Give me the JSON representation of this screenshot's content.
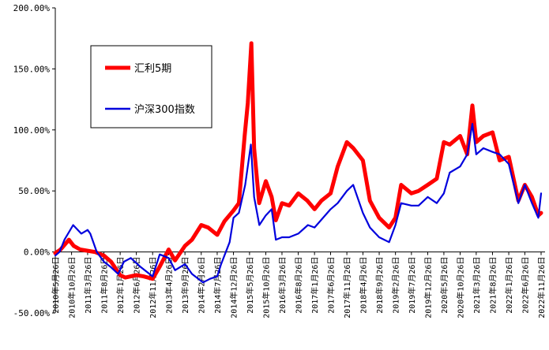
{
  "chart_data": {
    "type": "line",
    "title": "",
    "xlabel": "",
    "ylabel": "",
    "ylim": [
      -0.5,
      2.0
    ],
    "yticks": [
      2.0,
      1.5,
      1.0,
      0.5,
      0.0,
      -0.5
    ],
    "ytick_labels": [
      "200.00%",
      "150.00%",
      "100.00%",
      "50.00%",
      "0.00%",
      "-50.00%"
    ],
    "x_range": [
      "2010-05-26",
      "2022-11-26"
    ],
    "x_tick_dates": [
      "2010-05-26",
      "2010-10-26",
      "2011-03-26",
      "2011-08-26",
      "2012-01-26",
      "2012-06-26",
      "2012-11-26",
      "2013-04-26",
      "2013-09-26",
      "2014-02-26",
      "2014-07-26",
      "2014-12-26",
      "2015-05-26",
      "2015-10-26",
      "2016-03-26",
      "2016-08-26",
      "2017-01-26",
      "2017-06-26",
      "2017-11-26",
      "2018-04-26",
      "2018-09-26",
      "2019-02-26",
      "2019-07-26",
      "2019-12-26",
      "2020-05-26",
      "2020-10-26",
      "2021-03-26",
      "2021-08-26",
      "2022-01-26",
      "2022-06-26",
      "2022-11-26"
    ],
    "x_tick_labels": [
      "2010年5月26日",
      "2010年10月26日",
      "2011年3月26日",
      "2011年8月26日",
      "2012年1月26日",
      "2012年6月26日",
      "2012年11月26日",
      "2013年4月26日",
      "2013年9月26日",
      "2014年2月26日",
      "2014年7月26日",
      "2014年12月26日",
      "2015年5月26日",
      "2015年10月26日",
      "2016年3月26日",
      "2016年8月26日",
      "2017年1月26日",
      "2017年6月26日",
      "2017年11月26日",
      "2018年4月26日",
      "2018年9月26日",
      "2019年2月26日",
      "2019年7月26日",
      "2019年12月26日",
      "2020年5月26日",
      "2020年10月26日",
      "2021年3月26日",
      "2021年8月26日",
      "2022年1月26日",
      "2022年6月26日",
      "2022年11月26日"
    ],
    "legend_position": "upper-left",
    "grid": false,
    "series": [
      {
        "name": "汇利5期",
        "color": "#ff0000",
        "x": [
          "2010-05-26",
          "2010-07-15",
          "2010-10-01",
          "2010-11-15",
          "2011-01-15",
          "2011-03-26",
          "2011-06-01",
          "2011-08-26",
          "2011-11-01",
          "2012-01-26",
          "2012-03-15",
          "2012-06-26",
          "2012-09-01",
          "2012-11-26",
          "2013-02-01",
          "2013-04-26",
          "2013-06-25",
          "2013-09-26",
          "2013-12-01",
          "2014-02-26",
          "2014-05-01",
          "2014-07-26",
          "2014-10-01",
          "2014-12-26",
          "2015-02-15",
          "2015-04-10",
          "2015-05-10",
          "2015-06-12",
          "2015-07-08",
          "2015-08-25",
          "2015-10-26",
          "2015-12-20",
          "2016-01-28",
          "2016-03-26",
          "2016-06-01",
          "2016-08-26",
          "2016-11-20",
          "2017-01-26",
          "2017-04-01",
          "2017-06-26",
          "2017-09-01",
          "2017-11-26",
          "2018-01-26",
          "2018-04-26",
          "2018-07-01",
          "2018-09-26",
          "2018-12-28",
          "2019-02-26",
          "2019-04-20",
          "2019-07-26",
          "2019-10-01",
          "2019-12-26",
          "2020-03-20",
          "2020-05-26",
          "2020-07-20",
          "2020-10-26",
          "2021-01-01",
          "2021-02-18",
          "2021-03-26",
          "2021-06-01",
          "2021-08-26",
          "2021-11-01",
          "2022-01-26",
          "2022-04-26",
          "2022-06-26",
          "2022-09-01",
          "2022-10-31",
          "2022-11-26"
        ],
        "y": [
          -0.01,
          0.02,
          0.1,
          0.05,
          0.02,
          0.01,
          0.0,
          -0.03,
          -0.08,
          -0.19,
          -0.21,
          -0.19,
          -0.2,
          -0.22,
          -0.12,
          0.02,
          -0.07,
          0.05,
          0.1,
          0.22,
          0.2,
          0.14,
          0.25,
          0.34,
          0.4,
          0.95,
          1.22,
          1.71,
          0.85,
          0.4,
          0.58,
          0.45,
          0.26,
          0.4,
          0.38,
          0.48,
          0.42,
          0.35,
          0.42,
          0.48,
          0.7,
          0.9,
          0.85,
          0.75,
          0.42,
          0.28,
          0.2,
          0.28,
          0.55,
          0.48,
          0.5,
          0.55,
          0.6,
          0.9,
          0.88,
          0.95,
          0.8,
          1.2,
          0.9,
          0.95,
          0.98,
          0.75,
          0.78,
          0.42,
          0.55,
          0.45,
          0.3,
          0.32
        ]
      },
      {
        "name": "沪深300指数",
        "color": "#0000dd",
        "x": [
          "2010-05-26",
          "2010-07-05",
          "2010-08-20",
          "2010-11-10",
          "2011-01-25",
          "2011-03-26",
          "2011-04-20",
          "2011-06-20",
          "2011-08-26",
          "2011-10-25",
          "2012-01-06",
          "2012-03-01",
          "2012-05-05",
          "2012-08-01",
          "2012-11-26",
          "2013-02-01",
          "2013-04-26",
          "2013-06-25",
          "2013-09-26",
          "2013-12-01",
          "2014-03-15",
          "2014-05-20",
          "2014-07-26",
          "2014-09-01",
          "2014-11-20",
          "2014-12-26",
          "2015-02-15",
          "2015-04-15",
          "2015-06-08",
          "2015-07-08",
          "2015-08-26",
          "2015-10-26",
          "2015-12-20",
          "2016-01-28",
          "2016-03-26",
          "2016-06-01",
          "2016-08-26",
          "2016-11-25",
          "2017-01-26",
          "2017-06-26",
          "2017-09-01",
          "2017-11-26",
          "2018-01-24",
          "2018-04-26",
          "2018-07-01",
          "2018-09-26",
          "2018-12-28",
          "2019-02-26",
          "2019-04-20",
          "2019-07-26",
          "2019-10-01",
          "2019-12-26",
          "2020-03-20",
          "2020-05-26",
          "2020-07-20",
          "2020-10-26",
          "2021-01-01",
          "2021-02-18",
          "2021-03-26",
          "2021-06-01",
          "2021-08-26",
          "2021-11-01",
          "2022-01-26",
          "2022-04-26",
          "2022-06-26",
          "2022-09-01",
          "2022-10-31",
          "2022-11-26"
        ],
        "y": [
          -0.03,
          0.0,
          0.1,
          0.22,
          0.15,
          0.18,
          0.15,
          0.0,
          -0.08,
          -0.12,
          -0.18,
          -0.08,
          -0.05,
          -0.12,
          -0.2,
          -0.02,
          -0.05,
          -0.15,
          -0.1,
          -0.18,
          -0.25,
          -0.22,
          -0.2,
          -0.1,
          0.08,
          0.28,
          0.32,
          0.55,
          0.88,
          0.45,
          0.22,
          0.3,
          0.35,
          0.1,
          0.12,
          0.12,
          0.15,
          0.22,
          0.2,
          0.35,
          0.4,
          0.5,
          0.55,
          0.32,
          0.2,
          0.12,
          0.08,
          0.22,
          0.4,
          0.38,
          0.38,
          0.45,
          0.4,
          0.48,
          0.65,
          0.7,
          0.8,
          1.05,
          0.8,
          0.85,
          0.82,
          0.8,
          0.72,
          0.4,
          0.55,
          0.4,
          0.28,
          0.48
        ]
      }
    ]
  }
}
